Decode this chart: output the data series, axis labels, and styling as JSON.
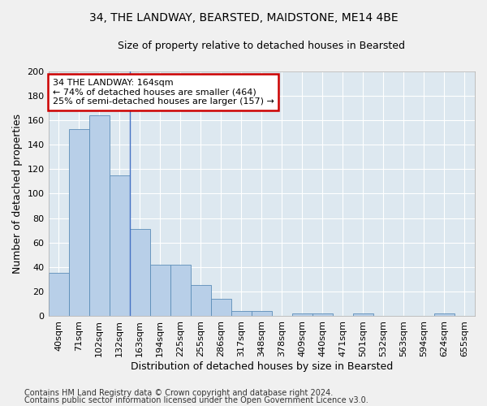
{
  "title1": "34, THE LANDWAY, BEARSTED, MAIDSTONE, ME14 4BE",
  "title2": "Size of property relative to detached houses in Bearsted",
  "xlabel": "Distribution of detached houses by size in Bearsted",
  "ylabel": "Number of detached properties",
  "categories": [
    "40sqm",
    "71sqm",
    "102sqm",
    "132sqm",
    "163sqm",
    "194sqm",
    "225sqm",
    "255sqm",
    "286sqm",
    "317sqm",
    "348sqm",
    "378sqm",
    "409sqm",
    "440sqm",
    "471sqm",
    "501sqm",
    "532sqm",
    "563sqm",
    "594sqm",
    "624sqm",
    "655sqm"
  ],
  "values": [
    35,
    153,
    164,
    115,
    71,
    42,
    42,
    25,
    14,
    4,
    4,
    0,
    2,
    2,
    0,
    2,
    0,
    0,
    0,
    2,
    0
  ],
  "bar_color": "#b8cfe8",
  "bar_edge_color": "#5b8db8",
  "vline_x": 3.5,
  "vline_color": "#4472c4",
  "annotation_line1": "34 THE LANDWAY: 164sqm",
  "annotation_line2": "← 74% of detached houses are smaller (464)",
  "annotation_line3": "25% of semi-detached houses are larger (157) →",
  "annotation_box_color": "#ffffff",
  "annotation_box_edge_color": "#cc0000",
  "ylim": [
    0,
    200
  ],
  "yticks": [
    0,
    20,
    40,
    60,
    80,
    100,
    120,
    140,
    160,
    180,
    200
  ],
  "background_color": "#dde8f0",
  "plot_bg_color": "#dde8f0",
  "fig_bg_color": "#f0f0f0",
  "grid_color": "#ffffff",
  "footer1": "Contains HM Land Registry data © Crown copyright and database right 2024.",
  "footer2": "Contains public sector information licensed under the Open Government Licence v3.0.",
  "title1_fontsize": 10,
  "title2_fontsize": 9,
  "xlabel_fontsize": 9,
  "ylabel_fontsize": 9,
  "tick_fontsize": 8,
  "annotation_fontsize": 8,
  "footer_fontsize": 7
}
